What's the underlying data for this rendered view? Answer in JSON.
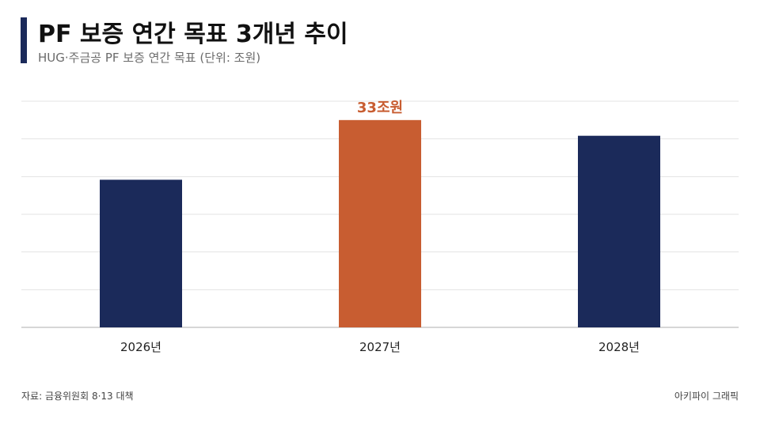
{
  "header": {
    "title": "PF 보증 연간 목표 3개년 추이",
    "subtitle": "HUG·주금공 PF 보증 연간 목표 (단위: 조원)"
  },
  "chart_data": {
    "type": "bar",
    "categories": [
      "2026년",
      "2027년",
      "2028년"
    ],
    "values": [
      23.5,
      33,
      30.5
    ],
    "data_labels": [
      "",
      "33조원",
      ""
    ],
    "ylim": [
      0,
      36
    ],
    "grid": true,
    "colors": [
      "#1b2a5a",
      "#c85d31",
      "#1b2a5a"
    ],
    "label_color": "#c85d31"
  },
  "footer": {
    "source": "자료: 금융위원회 8·13 대책",
    "credit": "아키파이 그래픽"
  }
}
